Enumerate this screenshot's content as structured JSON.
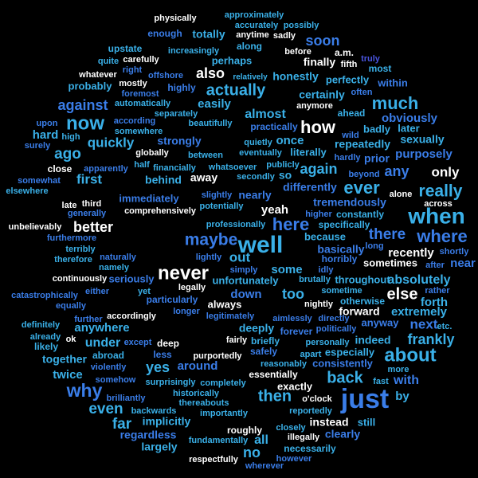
{
  "words": [
    {
      "text": "physically",
      "color": "#ffffff"
    },
    {
      "text": "approximately",
      "color": "#3ab0e8"
    },
    {
      "text": "accurately",
      "color": "#3ab0e8"
    },
    {
      "text": "possibly",
      "color": "#3ab0e8"
    },
    {
      "text": "enough",
      "color": "#3a7de8"
    },
    {
      "text": "totally",
      "color": "#3ab0e8"
    },
    {
      "text": "anytime",
      "color": "#ffffff"
    },
    {
      "text": "sadly",
      "color": "#ffffff"
    },
    {
      "text": "soon",
      "color": "#3a7de8"
    },
    {
      "text": "upstate",
      "color": "#3ab0e8"
    },
    {
      "text": "increasingly",
      "color": "#3ab0e8"
    },
    {
      "text": "along",
      "color": "#3ab0e8"
    },
    {
      "text": "before",
      "color": "#ffffff"
    },
    {
      "text": "a.m.",
      "color": "#ffffff"
    },
    {
      "text": "truly",
      "color": "#4a55e0"
    },
    {
      "text": "quite",
      "color": "#3ab0e8"
    },
    {
      "text": "carefully",
      "color": "#ffffff"
    },
    {
      "text": "perhaps",
      "color": "#3ab0e8"
    },
    {
      "text": "finally",
      "color": "#ffffff"
    },
    {
      "text": "fifth",
      "color": "#ffffff"
    },
    {
      "text": "right",
      "color": "#3a7de8"
    },
    {
      "text": "whatever",
      "color": "#ffffff"
    },
    {
      "text": "offshore",
      "color": "#3a7de8"
    },
    {
      "text": "also",
      "color": "#ffffff"
    },
    {
      "text": "relatively",
      "color": "#3ab0e8"
    },
    {
      "text": "honestly",
      "color": "#3ab0e8"
    },
    {
      "text": "most",
      "color": "#3ab0e8"
    },
    {
      "text": "mostly",
      "color": "#ffffff"
    },
    {
      "text": "probably",
      "color": "#3ab0e8"
    },
    {
      "text": "highly",
      "color": "#3a7de8"
    },
    {
      "text": "actually",
      "color": "#3ab0e8"
    },
    {
      "text": "perfectly",
      "color": "#3ab0e8"
    },
    {
      "text": "within",
      "color": "#3a7de8"
    },
    {
      "text": "foremost",
      "color": "#3a7de8"
    },
    {
      "text": "often",
      "color": "#3a7de8"
    },
    {
      "text": "certainly",
      "color": "#3ab0e8"
    },
    {
      "text": "against",
      "color": "#3a7de8"
    },
    {
      "text": "automatically",
      "color": "#3ab0e8"
    },
    {
      "text": "easily",
      "color": "#3ab0e8"
    },
    {
      "text": "anymore",
      "color": "#ffffff"
    },
    {
      "text": "much",
      "color": "#3ab0e8"
    },
    {
      "text": "separately",
      "color": "#3ab0e8"
    },
    {
      "text": "almost",
      "color": "#3ab0e8"
    },
    {
      "text": "ahead",
      "color": "#3ab0e8"
    },
    {
      "text": "upon",
      "color": "#3a7de8"
    },
    {
      "text": "now",
      "color": "#3ab0e8"
    },
    {
      "text": "according",
      "color": "#3a7de8"
    },
    {
      "text": "beautifully",
      "color": "#3ab0e8"
    },
    {
      "text": "practically",
      "color": "#3a7de8"
    },
    {
      "text": "how",
      "color": "#ffffff"
    },
    {
      "text": "obviously",
      "color": "#3a7de8"
    },
    {
      "text": "somewhere",
      "color": "#3ab0e8"
    },
    {
      "text": "badly",
      "color": "#3ab0e8"
    },
    {
      "text": "later",
      "color": "#3ab0e8"
    },
    {
      "text": "hard",
      "color": "#3ab0e8"
    },
    {
      "text": "high",
      "color": "#3ab0e8"
    },
    {
      "text": "quickly",
      "color": "#3ab0e8"
    },
    {
      "text": "strongly",
      "color": "#3a7de8"
    },
    {
      "text": "quietly",
      "color": "#3ab0e8"
    },
    {
      "text": "once",
      "color": "#3ab0e8"
    },
    {
      "text": "wild",
      "color": "#3a7de8"
    },
    {
      "text": "sexually",
      "color": "#3ab0e8"
    },
    {
      "text": "surely",
      "color": "#3a7de8"
    },
    {
      "text": "globally",
      "color": "#ffffff"
    },
    {
      "text": "eventually",
      "color": "#3ab0e8"
    },
    {
      "text": "literally",
      "color": "#3ab0e8"
    },
    {
      "text": "repeatedly",
      "color": "#3ab0e8"
    },
    {
      "text": "ago",
      "color": "#3ab0e8"
    },
    {
      "text": "between",
      "color": "#3ab0e8"
    },
    {
      "text": "purposely",
      "color": "#3a7de8"
    },
    {
      "text": "hardly",
      "color": "#3a7de8"
    },
    {
      "text": "prior",
      "color": "#3a7de8"
    },
    {
      "text": "half",
      "color": "#3ab0e8"
    },
    {
      "text": "publicly",
      "color": "#3ab0e8"
    },
    {
      "text": "financially",
      "color": "#3ab0e8"
    },
    {
      "text": "whatsoever",
      "color": "#3ab0e8"
    },
    {
      "text": "again",
      "color": "#3ab0e8"
    },
    {
      "text": "any",
      "color": "#3a7de8"
    },
    {
      "text": "only",
      "color": "#ffffff"
    },
    {
      "text": "close",
      "color": "#ffffff"
    },
    {
      "text": "apparently",
      "color": "#3a7de8"
    },
    {
      "text": "beyond",
      "color": "#3a7de8"
    },
    {
      "text": "secondly",
      "color": "#3ab0e8"
    },
    {
      "text": "somewhat",
      "color": "#3a7de8"
    },
    {
      "text": "first",
      "color": "#3ab0e8"
    },
    {
      "text": "away",
      "color": "#ffffff"
    },
    {
      "text": "behind",
      "color": "#3ab0e8"
    },
    {
      "text": "so",
      "color": "#3ab0e8"
    },
    {
      "text": "ever",
      "color": "#3ab0e8"
    },
    {
      "text": "elsewhere",
      "color": "#3ab0e8"
    },
    {
      "text": "differently",
      "color": "#3a7de8"
    },
    {
      "text": "really",
      "color": "#3ab0e8"
    },
    {
      "text": "immediately",
      "color": "#3a7de8"
    },
    {
      "text": "slightly",
      "color": "#3a7de8"
    },
    {
      "text": "nearly",
      "color": "#3a7de8"
    },
    {
      "text": "alone",
      "color": "#ffffff"
    },
    {
      "text": "late",
      "color": "#ffffff"
    },
    {
      "text": "third",
      "color": "#ffffff"
    },
    {
      "text": "comprehensively",
      "color": "#ffffff"
    },
    {
      "text": "potentially",
      "color": "#3ab0e8"
    },
    {
      "text": "yeah",
      "color": "#ffffff"
    },
    {
      "text": "tremendously",
      "color": "#3a7de8"
    },
    {
      "text": "across",
      "color": "#ffffff"
    },
    {
      "text": "generally",
      "color": "#3a7de8"
    },
    {
      "text": "higher",
      "color": "#3a7de8"
    },
    {
      "text": "constantly",
      "color": "#3ab0e8"
    },
    {
      "text": "when",
      "color": "#3ab0e8"
    },
    {
      "text": "unbelievably",
      "color": "#ffffff"
    },
    {
      "text": "better",
      "color": "#ffffff"
    },
    {
      "text": "professionally",
      "color": "#3ab0e8"
    },
    {
      "text": "here",
      "color": "#3a7de8"
    },
    {
      "text": "specifically",
      "color": "#3ab0e8"
    },
    {
      "text": "furthermore",
      "color": "#3a7de8"
    },
    {
      "text": "there",
      "color": "#3a7de8"
    },
    {
      "text": "where",
      "color": "#3a7de8"
    },
    {
      "text": "maybe",
      "color": "#3a7de8"
    },
    {
      "text": "well",
      "color": "#3ab0e8"
    },
    {
      "text": "because",
      "color": "#3ab0e8"
    },
    {
      "text": "long",
      "color": "#3a7de8"
    },
    {
      "text": "shortly",
      "color": "#3a7de8"
    },
    {
      "text": "terribly",
      "color": "#3ab0e8"
    },
    {
      "text": "basically",
      "color": "#3a7de8"
    },
    {
      "text": "recently",
      "color": "#ffffff"
    },
    {
      "text": "lightly",
      "color": "#3a7de8"
    },
    {
      "text": "out",
      "color": "#3ab0e8"
    },
    {
      "text": "naturally",
      "color": "#3a7de8"
    },
    {
      "text": "therefore",
      "color": "#3ab0e8"
    },
    {
      "text": "horribly",
      "color": "#3a7de8"
    },
    {
      "text": "sometimes",
      "color": "#ffffff"
    },
    {
      "text": "after",
      "color": "#3a7de8"
    },
    {
      "text": "near",
      "color": "#3a7de8"
    },
    {
      "text": "namely",
      "color": "#3ab0e8"
    },
    {
      "text": "never",
      "color": "#ffffff"
    },
    {
      "text": "simply",
      "color": "#3a7de8"
    },
    {
      "text": "some",
      "color": "#3ab0e8"
    },
    {
      "text": "idly",
      "color": "#3a7de8"
    },
    {
      "text": "continuously",
      "color": "#ffffff"
    },
    {
      "text": "seriously",
      "color": "#3a7de8"
    },
    {
      "text": "unfortunately",
      "color": "#3ab0e8"
    },
    {
      "text": "brutally",
      "color": "#3ab0e8"
    },
    {
      "text": "throughout",
      "color": "#3ab0e8"
    },
    {
      "text": "absolutely",
      "color": "#3ab0e8"
    },
    {
      "text": "legally",
      "color": "#ffffff"
    },
    {
      "text": "either",
      "color": "#3a7de8"
    },
    {
      "text": "yet",
      "color": "#3ab0e8"
    },
    {
      "text": "sometime",
      "color": "#3ab0e8"
    },
    {
      "text": "rather",
      "color": "#3a7de8"
    },
    {
      "text": "catastrophically",
      "color": "#3a7de8"
    },
    {
      "text": "down",
      "color": "#3a7de8"
    },
    {
      "text": "too",
      "color": "#3ab0e8"
    },
    {
      "text": "else",
      "color": "#ffffff"
    },
    {
      "text": "particularly",
      "color": "#3a7de8"
    },
    {
      "text": "otherwise",
      "color": "#3ab0e8"
    },
    {
      "text": "forth",
      "color": "#3ab0e8"
    },
    {
      "text": "equally",
      "color": "#3a7de8"
    },
    {
      "text": "always",
      "color": "#ffffff"
    },
    {
      "text": "nightly",
      "color": "#ffffff"
    },
    {
      "text": "longer",
      "color": "#3a7de8"
    },
    {
      "text": "forward",
      "color": "#ffffff"
    },
    {
      "text": "extremely",
      "color": "#3ab0e8"
    },
    {
      "text": "accordingly",
      "color": "#ffffff"
    },
    {
      "text": "legitimately",
      "color": "#3a7de8"
    },
    {
      "text": "aimlessly",
      "color": "#3a7de8"
    },
    {
      "text": "directly",
      "color": "#3a7de8"
    },
    {
      "text": "further",
      "color": "#3a7de8"
    },
    {
      "text": "anyway",
      "color": "#3a7de8"
    },
    {
      "text": "next",
      "color": "#3a7de8"
    },
    {
      "text": "definitely",
      "color": "#3ab0e8"
    },
    {
      "text": "anywhere",
      "color": "#3ab0e8"
    },
    {
      "text": "deeply",
      "color": "#3ab0e8"
    },
    {
      "text": "forever",
      "color": "#3a7de8"
    },
    {
      "text": "politically",
      "color": "#3a7de8"
    },
    {
      "text": "etc.",
      "color": "#3ab0e8"
    },
    {
      "text": "already",
      "color": "#3ab0e8"
    },
    {
      "text": "except",
      "color": "#3a7de8"
    },
    {
      "text": "ok",
      "color": "#ffffff"
    },
    {
      "text": "under",
      "color": "#3ab0e8"
    },
    {
      "text": "briefly",
      "color": "#3ab0e8"
    },
    {
      "text": "personally",
      "color": "#3ab0e8"
    },
    {
      "text": "frankly",
      "color": "#3ab0e8"
    },
    {
      "text": "fairly",
      "color": "#ffffff"
    },
    {
      "text": "indeed",
      "color": "#3ab0e8"
    },
    {
      "text": "deep",
      "color": "#ffffff"
    },
    {
      "text": "likely",
      "color": "#3ab0e8"
    },
    {
      "text": "together",
      "color": "#3ab0e8"
    },
    {
      "text": "abroad",
      "color": "#3ab0e8"
    },
    {
      "text": "less",
      "color": "#3a7de8"
    },
    {
      "text": "safely",
      "color": "#3a7de8"
    },
    {
      "text": "apart",
      "color": "#3ab0e8"
    },
    {
      "text": "especially",
      "color": "#3ab0e8"
    },
    {
      "text": "about",
      "color": "#3ab0e8"
    },
    {
      "text": "violently",
      "color": "#3a7de8"
    },
    {
      "text": "around",
      "color": "#3a7de8"
    },
    {
      "text": "yes",
      "color": "#3ab0e8"
    },
    {
      "text": "reasonably",
      "color": "#3ab0e8"
    },
    {
      "text": "purportedly",
      "color": "#ffffff"
    },
    {
      "text": "consistently",
      "color": "#3a7de8"
    },
    {
      "text": "more",
      "color": "#3ab0e8"
    },
    {
      "text": "twice",
      "color": "#3ab0e8"
    },
    {
      "text": "essentially",
      "color": "#ffffff"
    },
    {
      "text": "back",
      "color": "#3ab0e8"
    },
    {
      "text": "with",
      "color": "#3a7de8"
    },
    {
      "text": "somehow",
      "color": "#3a7de8"
    },
    {
      "text": "surprisingly",
      "color": "#3ab0e8"
    },
    {
      "text": "completely",
      "color": "#3ab0e8"
    },
    {
      "text": "fast",
      "color": "#3ab0e8"
    },
    {
      "text": "why",
      "color": "#3a7de8"
    },
    {
      "text": "exactly",
      "color": "#ffffff"
    },
    {
      "text": "historically",
      "color": "#3ab0e8"
    },
    {
      "text": "then",
      "color": "#3ab0e8"
    },
    {
      "text": "just",
      "color": "#3a7de8"
    },
    {
      "text": "o'clock",
      "color": "#ffffff"
    },
    {
      "text": "by",
      "color": "#3ab0e8"
    },
    {
      "text": "brilliantly",
      "color": "#3a7de8"
    },
    {
      "text": "thereabouts",
      "color": "#3ab0e8"
    },
    {
      "text": "even",
      "color": "#3ab0e8"
    },
    {
      "text": "backwards",
      "color": "#3ab0e8"
    },
    {
      "text": "importantly",
      "color": "#3ab0e8"
    },
    {
      "text": "reportedly",
      "color": "#3ab0e8"
    },
    {
      "text": "far",
      "color": "#3ab0e8"
    },
    {
      "text": "implicitly",
      "color": "#3ab0e8"
    },
    {
      "text": "instead",
      "color": "#ffffff"
    },
    {
      "text": "still",
      "color": "#3ab0e8"
    },
    {
      "text": "roughly",
      "color": "#ffffff"
    },
    {
      "text": "closely",
      "color": "#3ab0e8"
    },
    {
      "text": "regardless",
      "color": "#3a7de8"
    },
    {
      "text": "all",
      "color": "#3ab0e8"
    },
    {
      "text": "fundamentally",
      "color": "#3ab0e8"
    },
    {
      "text": "illegally",
      "color": "#ffffff"
    },
    {
      "text": "clearly",
      "color": "#3a7de8"
    },
    {
      "text": "largely",
      "color": "#3ab0e8"
    },
    {
      "text": "necessarily",
      "color": "#3ab0e8"
    },
    {
      "text": "no",
      "color": "#3ab0e8"
    },
    {
      "text": "respectfully",
      "color": "#ffffff"
    },
    {
      "text": "however",
      "color": "#3a7de8"
    },
    {
      "text": "wherever",
      "color": "#3a7de8"
    }
  ]
}
